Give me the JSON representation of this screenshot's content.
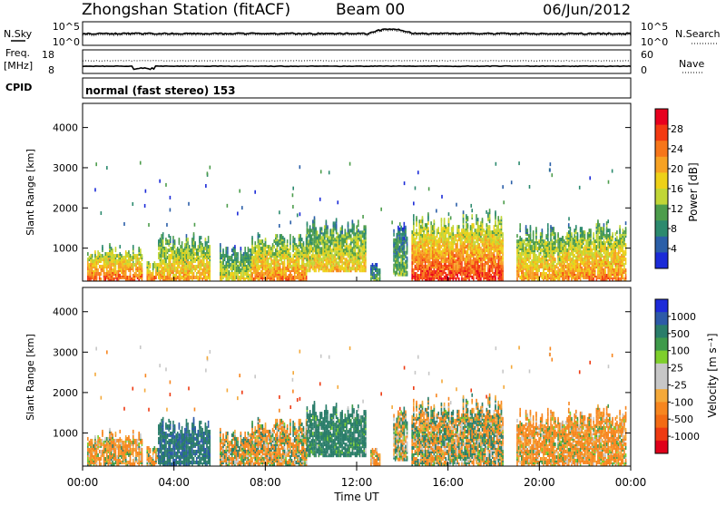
{
  "header": {
    "station": "Zhongshan Station (fitACF)",
    "beam": "Beam 00",
    "date": "06/Jun/2012"
  },
  "noise_panel": {
    "left_label": "N.Sky",
    "right_label": "N.Search",
    "ticks_left": [
      "10^5",
      "10^0"
    ],
    "ticks_right": [
      "10^5",
      "10^0"
    ]
  },
  "freq_panel": {
    "left_label_top": "Freq.",
    "left_label_bottom": "[MHz]",
    "right_label": "Nave",
    "ticks_left": [
      "18",
      "8"
    ],
    "ticks_right": [
      "60",
      "0"
    ]
  },
  "cpid": {
    "label": "CPID",
    "text": "normal (fast stereo) 153"
  },
  "power_colorbar": {
    "label": "Power [dB]",
    "ticks": [
      "28",
      "24",
      "20",
      "16",
      "12",
      "8",
      "4"
    ],
    "colors": [
      "#e8001e",
      "#f33a12",
      "#f7761a",
      "#f7a223",
      "#eed118",
      "#c1d636",
      "#4d9d4c",
      "#2c8a6e",
      "#2b5fa8",
      "#1b2bd8"
    ]
  },
  "velocity_colorbar": {
    "label": "Velocity [m s⁻¹]",
    "ticks": [
      "1000",
      "500",
      "100",
      "25",
      "-25",
      "-100",
      "-500",
      "-1000"
    ],
    "colors": [
      "#1e2bd9",
      "#2d5aa8",
      "#2a7d6a",
      "#3f9a4a",
      "#7ecf2c",
      "#c7c7c7",
      "#c7c7c7",
      "#f4a93a",
      "#f7861f",
      "#f36b14",
      "#ee3a12",
      "#e0001a"
    ]
  },
  "axes": {
    "y_label": "Slant Range [km]",
    "y_ticks": [
      "4000",
      "3000",
      "2000",
      "1000"
    ],
    "x_label": "Time UT",
    "x_ticks": [
      "00:00",
      "04:00",
      "08:00",
      "12:00",
      "16:00",
      "20:00",
      "00:00"
    ]
  },
  "chart_data": [
    {
      "type": "heatmap",
      "title": "Power",
      "x": "UT hours 0-24",
      "ylabel": "Slant Range [km]",
      "ylim": [
        180,
        4600
      ],
      "xlim": [
        0,
        24
      ],
      "zlabel": "Power [dB]",
      "zrange": [
        0,
        30
      ],
      "regions": [
        {
          "t": [
            0.2,
            2.6
          ],
          "r": [
            180,
            1050
          ],
          "peak": 24
        },
        {
          "t": [
            2.8,
            3.3
          ],
          "r": [
            180,
            700
          ],
          "peak": 22
        },
        {
          "t": [
            3.3,
            5.6
          ],
          "r": [
            180,
            1350
          ],
          "peak": 20
        },
        {
          "t": [
            6.0,
            7.4
          ],
          "r": [
            180,
            1050
          ],
          "peak": 16
        },
        {
          "t": [
            7.4,
            9.8
          ],
          "r": [
            180,
            1350
          ],
          "peak": 22
        },
        {
          "t": [
            9.8,
            12.4
          ],
          "r": [
            400,
            1750
          ],
          "peak": 18
        },
        {
          "t": [
            12.6,
            13.0
          ],
          "r": [
            180,
            600
          ],
          "peak": 10
        },
        {
          "t": [
            13.6,
            14.2
          ],
          "r": [
            300,
            1600
          ],
          "peak": 12
        },
        {
          "t": [
            14.4,
            18.4
          ],
          "r": [
            180,
            1900
          ],
          "peak": 26
        },
        {
          "t": [
            19.0,
            21.0
          ],
          "r": [
            180,
            1600
          ],
          "peak": 20
        },
        {
          "t": [
            21.0,
            23.8
          ],
          "r": [
            180,
            1650
          ],
          "peak": 22
        }
      ]
    },
    {
      "type": "heatmap",
      "title": "Velocity",
      "x": "UT hours 0-24",
      "ylabel": "Slant Range [km]",
      "ylim": [
        180,
        4600
      ],
      "xlim": [
        0,
        24
      ],
      "zlabel": "Velocity [m s-1]",
      "zrange": [
        -1000,
        1000
      ],
      "regions": [
        {
          "t": [
            0.2,
            2.6
          ],
          "r": [
            180,
            1050
          ],
          "mean": -120
        },
        {
          "t": [
            3.3,
            5.6
          ],
          "r": [
            180,
            1350
          ],
          "mean": 400
        },
        {
          "t": [
            6.0,
            9.8
          ],
          "r": [
            180,
            1350
          ],
          "mean": -60
        },
        {
          "t": [
            9.8,
            12.4
          ],
          "r": [
            400,
            1750
          ],
          "mean": 250
        },
        {
          "t": [
            13.6,
            18.4
          ],
          "r": [
            180,
            1900
          ],
          "mean": 0
        },
        {
          "t": [
            19.0,
            23.8
          ],
          "r": [
            180,
            1650
          ],
          "mean": -150
        }
      ]
    }
  ]
}
